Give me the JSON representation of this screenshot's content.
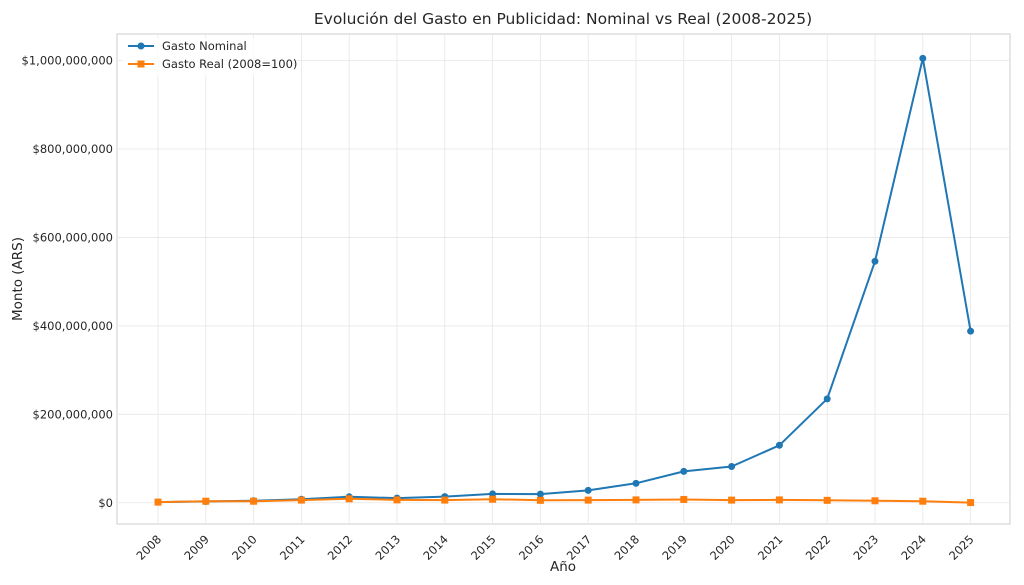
{
  "chart_data": {
    "type": "line",
    "title": "Evolución del Gasto en Publicidad: Nominal vs Real (2008-2025)",
    "xlabel": "Año",
    "ylabel": "Monto (ARS)",
    "categories": [
      "2008",
      "2009",
      "2010",
      "2011",
      "2012",
      "2013",
      "2014",
      "2015",
      "2016",
      "2017",
      "2018",
      "2019",
      "2020",
      "2021",
      "2022",
      "2023",
      "2024",
      "2025"
    ],
    "ylim": [
      -48000000,
      1060000000
    ],
    "yticks": [
      0,
      200000000,
      400000000,
      600000000,
      800000000,
      1000000000
    ],
    "ytick_labels": [
      "$0",
      "$200,000,000",
      "$400,000,000",
      "$600,000,000",
      "$800,000,000",
      "$1,000,000,000"
    ],
    "grid": true,
    "legend_position": "top-left",
    "series": [
      {
        "name": "Gasto Nominal",
        "color": "#1f77b4",
        "marker": "circle",
        "values": [
          1500000,
          3000000,
          4500000,
          8000000,
          13500000,
          10500000,
          14000000,
          20000000,
          19500000,
          28000000,
          44000000,
          71000000,
          82000000,
          130000000,
          235000000,
          546000000,
          1005000000,
          388000000
        ]
      },
      {
        "name": "Gasto Real (2008=100)",
        "color": "#ff7f0e",
        "marker": "square",
        "values": [
          1500000,
          3500000,
          3500000,
          6000000,
          9000000,
          6500000,
          6000000,
          8000000,
          5500000,
          6000000,
          6500000,
          7500000,
          6000000,
          6500000,
          5500000,
          4500000,
          3500000,
          500000
        ]
      }
    ]
  }
}
